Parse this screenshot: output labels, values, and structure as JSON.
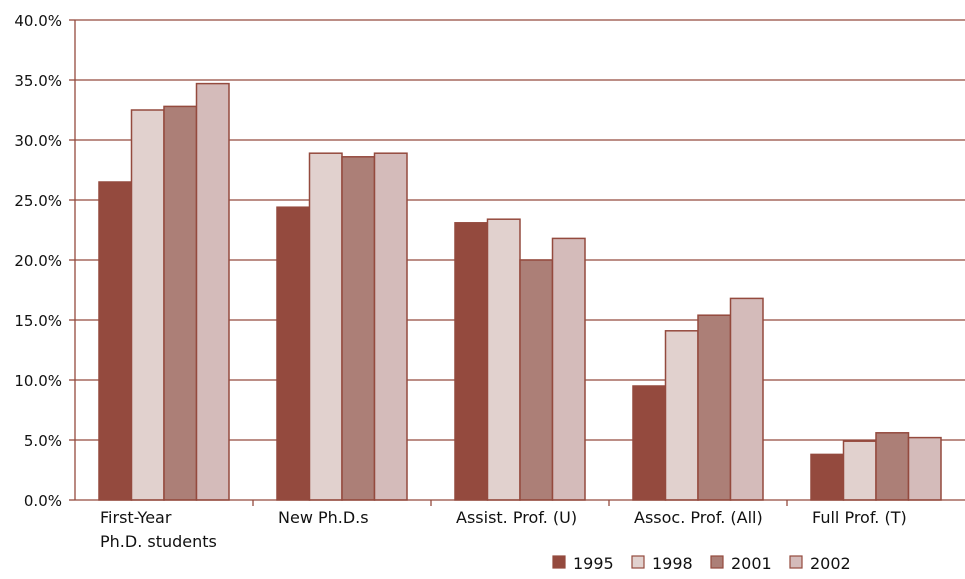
{
  "chart_data": {
    "type": "bar",
    "categories": [
      [
        "First-Year",
        "Ph.D. students"
      ],
      [
        "New Ph.D.s"
      ],
      [
        "Assist. Prof. (U)"
      ],
      [
        "Assoc. Prof. (All)"
      ],
      [
        "Full Prof. (T)"
      ]
    ],
    "series": [
      {
        "name": "1995",
        "values": [
          26.5,
          24.4,
          23.1,
          9.5,
          3.8
        ]
      },
      {
        "name": "1998",
        "values": [
          32.5,
          28.9,
          23.4,
          14.1,
          4.9
        ]
      },
      {
        "name": "2001",
        "values": [
          32.8,
          28.6,
          20.0,
          15.4,
          5.6
        ]
      },
      {
        "name": "2002",
        "values": [
          34.7,
          28.9,
          21.8,
          16.8,
          5.2
        ]
      }
    ],
    "yticks": [
      "0.0%",
      "5.0%",
      "10.0%",
      "15.0%",
      "20.0%",
      "25.0%",
      "30.0%",
      "35.0%",
      "40.0%"
    ],
    "ylim": [
      0,
      40
    ],
    "grid": true,
    "legend_position": "bottom-right",
    "colors": {
      "series": [
        "#944a3e",
        "#e1d1ce",
        "#ac7f77",
        "#d4bbba"
      ],
      "bar_stroke": "#944a3e",
      "grid": "#944a3e",
      "axis": "#944a3e"
    }
  }
}
